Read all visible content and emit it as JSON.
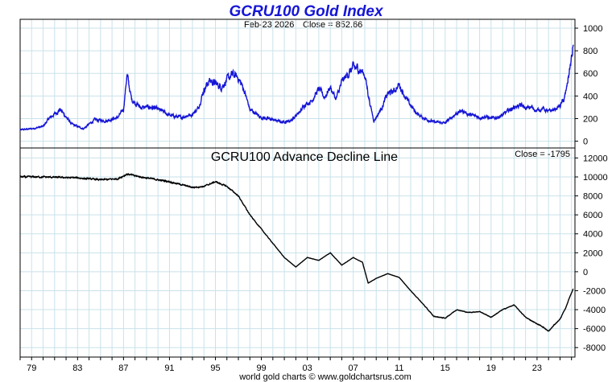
{
  "chart_data": [
    {
      "type": "line",
      "title": "GCRU100 Gold Index",
      "subtitle_date": "Feb-23  2026",
      "subtitle_close": "Close = 852.66",
      "ylim": [
        -60,
        1050
      ],
      "yticks": [
        0,
        200,
        400,
        600,
        800,
        1000
      ],
      "grid": true,
      "color": "#1515d6",
      "series": [
        {
          "x": [
            1978.0,
            1979.0,
            1980.0,
            1980.5,
            1981.5,
            1982.5,
            1983.5,
            1984.5,
            1985.5,
            1986.5,
            1987.0,
            1987.3,
            1987.7,
            1988.5,
            1989.5,
            1990.5,
            1991.0,
            1992.0,
            1993.0,
            1993.5,
            1994.0,
            1994.5,
            1995.0,
            1995.5,
            1996.0,
            1996.5,
            1997.0,
            1997.5,
            1998.0,
            1999.0,
            2000.0,
            2000.8,
            2001.5,
            2002.3,
            2002.8,
            2003.3,
            2004.0,
            2004.5,
            2005.0,
            2005.5,
            2006.0,
            2006.5,
            2007.0,
            2007.5,
            2008.0,
            2008.5,
            2008.8,
            2009.5,
            2010.0,
            2010.5,
            2011.0,
            2011.3,
            2011.8,
            2012.5,
            2013.0,
            2013.5,
            2014.0,
            2015.0,
            2016.0,
            2016.5,
            2017.0,
            2018.0,
            2018.5,
            2019.0,
            2019.5,
            2020.0,
            2020.5,
            2021.0,
            2021.5,
            2022.0,
            2022.5,
            2023.0,
            2023.5,
            2024.0,
            2024.5,
            2025.0,
            2025.4,
            2025.6,
            2025.8,
            2026.05,
            2026.15
          ],
          "values": [
            100,
            110,
            130,
            200,
            280,
            150,
            110,
            190,
            180,
            210,
            280,
            590,
            370,
            300,
            300,
            260,
            230,
            210,
            240,
            290,
            460,
            540,
            510,
            480,
            540,
            590,
            560,
            450,
            280,
            210,
            190,
            170,
            180,
            250,
            330,
            350,
            460,
            390,
            480,
            370,
            520,
            590,
            650,
            640,
            590,
            310,
            180,
            300,
            420,
            440,
            500,
            440,
            340,
            250,
            210,
            190,
            170,
            160,
            250,
            270,
            240,
            210,
            220,
            200,
            210,
            230,
            270,
            300,
            320,
            290,
            300,
            270,
            290,
            260,
            280,
            310,
            380,
            480,
            620,
            750,
            853
          ]
        }
      ],
      "x_range": [
        1978,
        2026.3
      ]
    },
    {
      "type": "line",
      "title": "GCRU100 Advance Decline Line",
      "subtitle_close": "Close = -1795",
      "ylim": [
        -9000,
        12800
      ],
      "yticks": [
        -8000,
        -6000,
        -4000,
        -2000,
        0,
        2000,
        4000,
        6000,
        8000,
        10000,
        12000
      ],
      "grid": true,
      "color": "#000000",
      "series": [
        {
          "x": [
            1978.0,
            1980.0,
            1983.0,
            1985.0,
            1986.5,
            1987.3,
            1988.5,
            1990.0,
            1991.0,
            1992.0,
            1993.0,
            1994.0,
            1995.0,
            1996.0,
            1996.5,
            1997.0,
            1998.0,
            1999.0,
            2000.0,
            2001.0,
            2002.0,
            2003.0,
            2004.0,
            2005.0,
            2006.0,
            2007.0,
            2007.8,
            2008.3,
            2009.0,
            2010.0,
            2011.0,
            2012.0,
            2013.0,
            2013.5,
            2014.0,
            2015.0,
            2016.0,
            2017.0,
            2018.0,
            2019.0,
            2020.0,
            2021.0,
            2022.0,
            2023.0,
            2023.5,
            2024.0,
            2024.5,
            2025.0,
            2025.5,
            2025.8,
            2026.15
          ],
          "values": [
            10000,
            10000,
            9900,
            9700,
            9800,
            10300,
            10000,
            9700,
            9500,
            9200,
            8900,
            9000,
            9500,
            9000,
            8500,
            8000,
            6000,
            4500,
            3000,
            1500,
            500,
            1500,
            1200,
            2000,
            700,
            1500,
            1000,
            -1200,
            -700,
            -200,
            -600,
            -2000,
            -3300,
            -4000,
            -4700,
            -4900,
            -4000,
            -4300,
            -4200,
            -4800,
            -4000,
            -3500,
            -4800,
            -5500,
            -5800,
            -6300,
            -5600,
            -5000,
            -3800,
            -2800,
            -1795
          ]
        }
      ],
      "x_range": [
        1978,
        2026.3
      ]
    }
  ],
  "x_axis": {
    "labels": [
      "79",
      "83",
      "87",
      "91",
      "95",
      "99",
      "03",
      "07",
      "11",
      "15",
      "19",
      "23"
    ]
  },
  "footer": "world gold charts © www.goldchartsrus.com"
}
